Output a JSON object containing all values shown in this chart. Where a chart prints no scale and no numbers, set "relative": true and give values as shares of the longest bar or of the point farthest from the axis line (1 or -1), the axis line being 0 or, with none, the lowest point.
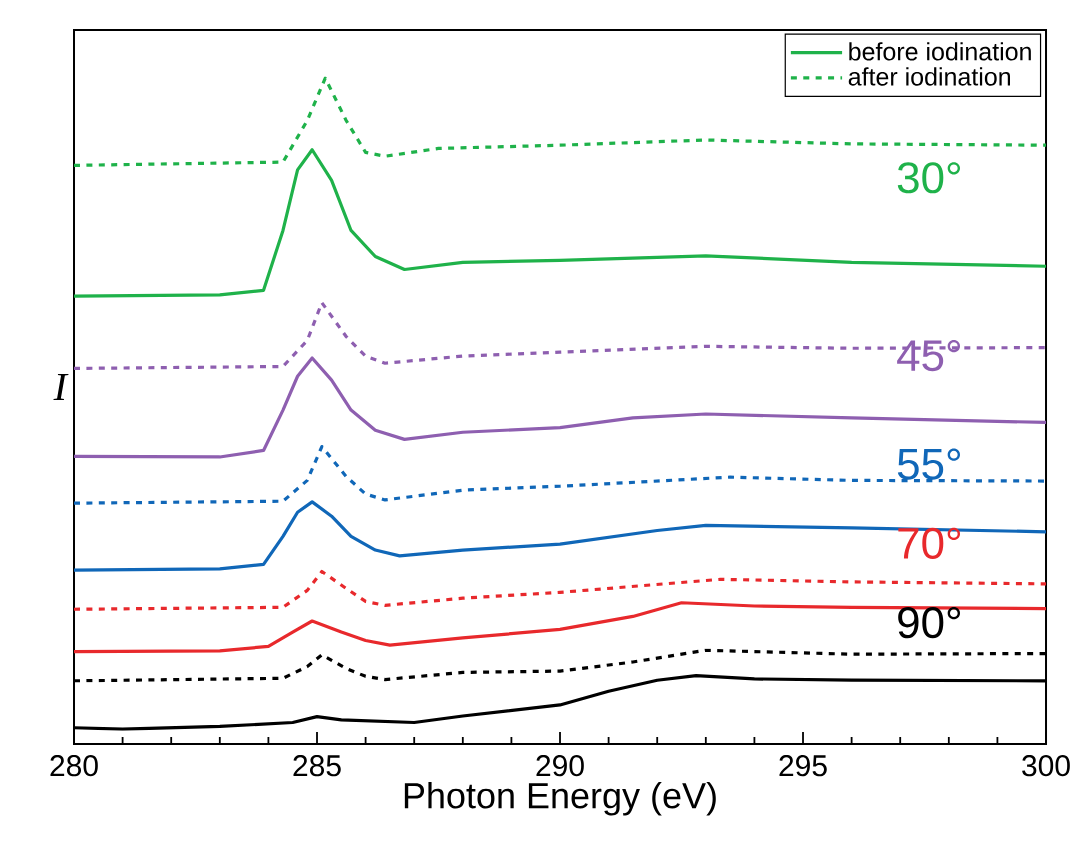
{
  "chart_data": {
    "type": "line",
    "relative": true,
    "xlabel": "Photon Energy (eV)",
    "ylabel": "I",
    "xlim": [
      280,
      300
    ],
    "xticks": [
      280,
      285,
      290,
      295,
      300
    ],
    "legend": "top right",
    "series": [
      {
        "name": "before iodination",
        "color": "#1fb24a",
        "line_style": "solid",
        "x": [
          280,
          283,
          283.9,
          284.3,
          284.6,
          284.9,
          285.3,
          285.7,
          286.2,
          286.8,
          288,
          290,
          293,
          296,
          300
        ],
        "values": [
          0.665,
          0.667,
          0.674,
          0.766,
          0.859,
          0.89,
          0.843,
          0.766,
          0.726,
          0.706,
          0.717,
          0.72,
          0.727,
          0.717,
          0.711
        ]
      },
      {
        "name": "after iodination",
        "color": "#1fb24a",
        "line_style": "dotted",
        "x": [
          280,
          284.3,
          284.8,
          285.17,
          285.6,
          286,
          286.4,
          287.5,
          290,
          293,
          296,
          300
        ],
        "values": [
          0.866,
          0.871,
          0.935,
          1.0,
          0.935,
          0.886,
          0.88,
          0.892,
          0.897,
          0.905,
          0.899,
          0.897
        ]
      },
      {
        "color": "#8e5fb0",
        "line_style": "dotted",
        "x": [
          280,
          284.3,
          284.8,
          285.1,
          285.6,
          286,
          286.4,
          288,
          290,
          293,
          296,
          300
        ],
        "values": [
          0.554,
          0.557,
          0.597,
          0.655,
          0.603,
          0.573,
          0.562,
          0.573,
          0.579,
          0.588,
          0.585,
          0.586
        ]
      },
      {
        "color": "#8e5fb0",
        "line_style": "solid",
        "x": [
          280,
          283,
          283.9,
          284.3,
          284.6,
          284.9,
          285.3,
          285.7,
          286.2,
          286.8,
          288,
          290,
          291.5,
          293,
          296,
          300
        ],
        "values": [
          0.419,
          0.418,
          0.428,
          0.49,
          0.542,
          0.57,
          0.536,
          0.49,
          0.459,
          0.445,
          0.456,
          0.463,
          0.478,
          0.484,
          0.478,
          0.471
        ]
      },
      {
        "color": "#1067b8",
        "line_style": "dotted",
        "x": [
          280,
          284.3,
          284.8,
          285.1,
          285.6,
          286,
          286.4,
          288,
          290,
          293.5,
          296,
          300
        ],
        "values": [
          0.347,
          0.35,
          0.382,
          0.434,
          0.388,
          0.361,
          0.352,
          0.367,
          0.373,
          0.387,
          0.382,
          0.381
        ]
      },
      {
        "color": "#1067b8",
        "line_style": "solid",
        "x": [
          280,
          283,
          283.9,
          284.3,
          284.6,
          284.9,
          285.3,
          285.7,
          286.2,
          286.7,
          288,
          290,
          292,
          293,
          296,
          300
        ],
        "values": [
          0.244,
          0.246,
          0.253,
          0.296,
          0.333,
          0.349,
          0.327,
          0.296,
          0.275,
          0.266,
          0.275,
          0.284,
          0.305,
          0.313,
          0.309,
          0.303
        ]
      },
      {
        "color": "#e8292c",
        "line_style": "dotted",
        "x": [
          280,
          284.3,
          284.8,
          285.1,
          285.6,
          286,
          286.4,
          288,
          290,
          293.3,
          296,
          300
        ],
        "values": [
          0.184,
          0.187,
          0.213,
          0.242,
          0.216,
          0.196,
          0.19,
          0.201,
          0.21,
          0.23,
          0.226,
          0.223
        ]
      },
      {
        "color": "#e8292c",
        "line_style": "solid",
        "x": [
          280,
          283,
          284,
          284.5,
          284.9,
          285.5,
          286,
          286.5,
          288,
          290,
          291.5,
          292.5,
          294,
          296,
          300
        ],
        "values": [
          0.119,
          0.12,
          0.127,
          0.149,
          0.166,
          0.149,
          0.136,
          0.129,
          0.14,
          0.153,
          0.173,
          0.194,
          0.189,
          0.187,
          0.185
        ]
      },
      {
        "color": "#000000",
        "line_style": "dotted",
        "x": [
          280,
          284.3,
          284.8,
          285.1,
          285.6,
          286,
          286.4,
          288,
          290,
          291.5,
          293,
          296,
          300
        ],
        "values": [
          0.074,
          0.078,
          0.096,
          0.114,
          0.093,
          0.081,
          0.076,
          0.087,
          0.089,
          0.103,
          0.121,
          0.115,
          0.116
        ]
      },
      {
        "color": "#000000",
        "line_style": "solid",
        "x": [
          280,
          281,
          283,
          284.5,
          285,
          285.5,
          287,
          288,
          290,
          291,
          292,
          292.8,
          294,
          296,
          300
        ],
        "values": [
          0.002,
          0.0,
          0.004,
          0.01,
          0.019,
          0.014,
          0.01,
          0.02,
          0.037,
          0.058,
          0.075,
          0.082,
          0.077,
          0.075,
          0.074
        ]
      }
    ],
    "annotations": [
      "30°",
      "45°",
      "55°",
      "70°",
      "90°"
    ]
  }
}
